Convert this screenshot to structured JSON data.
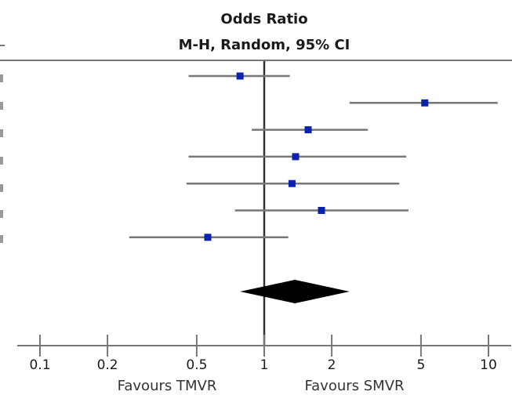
{
  "header": {
    "title_line1": "Odds Ratio",
    "title_line2": "M-H, Random, 95% CI"
  },
  "footer": {
    "favours_left": "Favours TMVR",
    "favours_right": "Favours SMVR"
  },
  "colors": {
    "point": "#0a22b0",
    "ci_line": "#777777",
    "axis": "#777777",
    "reference_line": "#333333",
    "diamond": "#000000"
  },
  "chart_data": {
    "type": "forest",
    "title": "Odds Ratio M-H, Random, 95% CI",
    "x_scale": "log",
    "xlim": [
      0.08,
      12
    ],
    "ticks": [
      0.1,
      0.2,
      0.5,
      1,
      2,
      5,
      10
    ],
    "tick_labels": [
      "0.1",
      "0.2",
      "0.5",
      "1",
      "2",
      "5",
      "10"
    ],
    "reference_value": 1,
    "studies": [
      {
        "or": 0.78,
        "lower": 0.46,
        "upper": 1.3
      },
      {
        "or": 5.2,
        "lower": 2.4,
        "upper": 11.0
      },
      {
        "or": 1.57,
        "lower": 0.88,
        "upper": 2.9
      },
      {
        "or": 1.38,
        "lower": 0.46,
        "upper": 4.3
      },
      {
        "or": 1.33,
        "lower": 0.45,
        "upper": 4.0
      },
      {
        "or": 1.8,
        "lower": 0.74,
        "upper": 4.4
      },
      {
        "or": 0.56,
        "lower": 0.25,
        "upper": 1.28
      }
    ],
    "pooled": {
      "or": 1.37,
      "lower": 0.78,
      "upper": 2.4
    }
  }
}
